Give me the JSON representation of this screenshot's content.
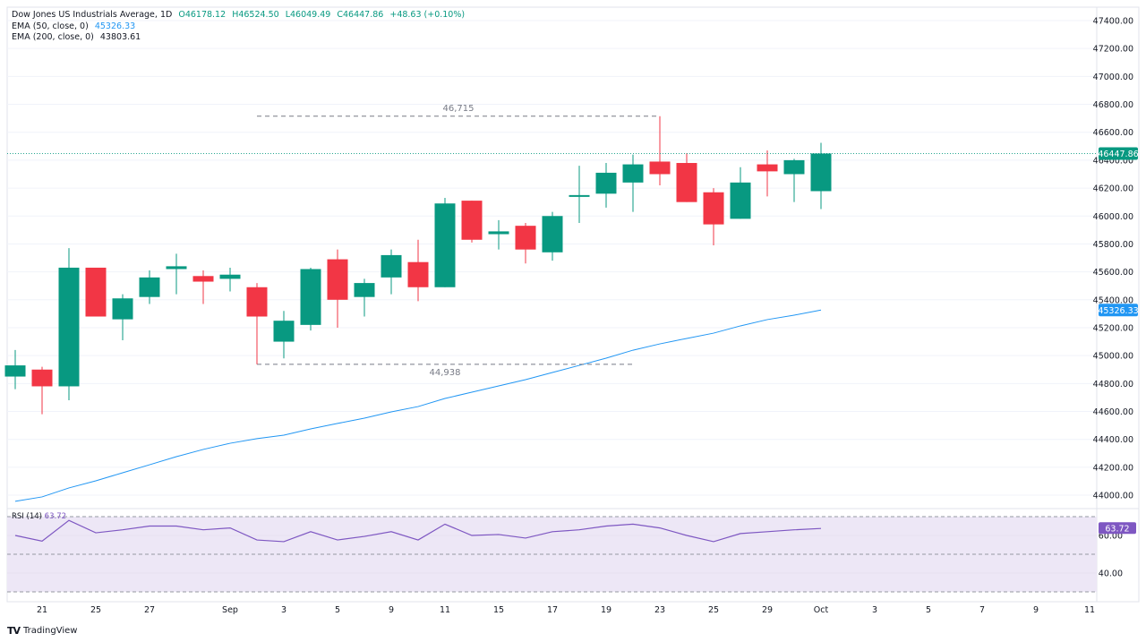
{
  "legend": {
    "title": "Dow Jones US Industrials Average, 1D",
    "open": "O46178.12",
    "high": "H46524.50",
    "low": "L46049.49",
    "close": "C46447.86",
    "change": "+48.63 (+0.10%)",
    "ema50_label": "EMA (50, close, 0)",
    "ema50_value": "45326.33",
    "ema200_label": "EMA (200, close, 0)",
    "ema200_value": "43803.61"
  },
  "branding": {
    "logo_text": "TradingView"
  },
  "chart_data": {
    "type": "candlestick",
    "colors": {
      "up": "#089981",
      "down": "#f23645",
      "ema50": "#2196f3",
      "rsi": "#7e57c2",
      "rsi_band": "#ede7f6"
    },
    "price_axis": {
      "range": [
        43940,
        47460
      ],
      "ticks": [
        47400,
        47200,
        47000,
        46800,
        46600,
        46400,
        46200,
        46000,
        45800,
        45600,
        45400,
        45200,
        45000,
        44800,
        44600,
        44400,
        44200,
        44000
      ]
    },
    "date_ticks": [
      {
        "index": 1,
        "label": "21"
      },
      {
        "index": 3,
        "label": "25"
      },
      {
        "index": 5,
        "label": "27"
      },
      {
        "index": 8,
        "label": "Sep"
      },
      {
        "index": 10,
        "label": "3"
      },
      {
        "index": 12,
        "label": "5"
      },
      {
        "index": 14,
        "label": "9"
      },
      {
        "index": 16,
        "label": "11"
      },
      {
        "index": 18,
        "label": "15"
      },
      {
        "index": 20,
        "label": "17"
      },
      {
        "index": 22,
        "label": "19"
      },
      {
        "index": 24,
        "label": "23"
      },
      {
        "index": 26,
        "label": "25"
      },
      {
        "index": 28,
        "label": "29"
      },
      {
        "index": 30,
        "label": "Oct"
      },
      {
        "index": 32,
        "label": "3"
      },
      {
        "index": 34,
        "label": "5"
      },
      {
        "index": 36,
        "label": "7"
      },
      {
        "index": 38,
        "label": "9"
      },
      {
        "index": 40,
        "label": "11"
      }
    ],
    "candles": [
      [
        44850,
        45040,
        44760,
        44930
      ],
      [
        44900,
        44920,
        44580,
        44780
      ],
      [
        44780,
        45770,
        44680,
        45630
      ],
      [
        45630,
        45630,
        45280,
        45280
      ],
      [
        45260,
        45440,
        45110,
        45410
      ],
      [
        45420,
        45610,
        45370,
        45560
      ],
      [
        45620,
        45730,
        45440,
        45640
      ],
      [
        45570,
        45610,
        45370,
        45530
      ],
      [
        45550,
        45630,
        45460,
        45580
      ],
      [
        45490,
        45520,
        44938,
        45280
      ],
      [
        45100,
        45320,
        44980,
        45250
      ],
      [
        45220,
        45630,
        45180,
        45620
      ],
      [
        45690,
        45760,
        45200,
        45400
      ],
      [
        45420,
        45550,
        45280,
        45520
      ],
      [
        45560,
        45760,
        45440,
        45720
      ],
      [
        45670,
        45830,
        45390,
        45490
      ],
      [
        45490,
        46130,
        45490,
        46090
      ],
      [
        46110,
        46110,
        45810,
        45830
      ],
      [
        45870,
        45970,
        45760,
        45890
      ],
      [
        45930,
        45950,
        45660,
        45760
      ],
      [
        45740,
        46030,
        45680,
        46000
      ],
      [
        46140,
        46360,
        45950,
        46150
      ],
      [
        46160,
        46380,
        46060,
        46310
      ],
      [
        46240,
        46440,
        46030,
        46370
      ],
      [
        46390,
        46715,
        46220,
        46300
      ],
      [
        46380,
        46450,
        46100,
        46100
      ],
      [
        46170,
        46200,
        45790,
        45940
      ],
      [
        45980,
        46350,
        45980,
        46240
      ],
      [
        46370,
        46470,
        46140,
        46320
      ],
      [
        46300,
        46410,
        46100,
        46400
      ],
      [
        46178.12,
        46524.5,
        46049.49,
        46447.86
      ]
    ],
    "candle_format": [
      "open",
      "high",
      "low",
      "close"
    ],
    "ema50": [
      43956,
      43988,
      44052,
      44103,
      44161,
      44218,
      44276,
      44328,
      44372,
      44405,
      44430,
      44475,
      44514,
      44552,
      44597,
      44635,
      44693,
      44738,
      44783,
      44828,
      44879,
      44930,
      44982,
      45039,
      45084,
      45123,
      45161,
      45213,
      45258,
      45290,
      45326.33
    ],
    "last_price": {
      "value": 46447.86,
      "label": "46447.86"
    },
    "ema50_last": {
      "value": 45326.33,
      "label": "45326.33"
    },
    "annotations": [
      {
        "label": "46,715",
        "price": 46715,
        "from_index": 9,
        "to_index": 24
      },
      {
        "label": "44,938",
        "price": 44938,
        "from_index": 9,
        "to_index": 23
      }
    ],
    "rsi": {
      "label": "RSI (14)",
      "value_label": "63.72",
      "range": [
        30,
        70
      ],
      "ticks": [
        {
          "v": 60,
          "label": "60.00"
        },
        {
          "v": 40,
          "label": "40.00"
        }
      ],
      "bands": [
        70,
        50,
        30
      ],
      "values": [
        60,
        57,
        68,
        61.4,
        63,
        65,
        65,
        63,
        64,
        57.6,
        56.7,
        62,
        57.6,
        59.5,
        62,
        57.6,
        66,
        60,
        60.5,
        58.6,
        62,
        63,
        65,
        66,
        64,
        60,
        56.7,
        61,
        62,
        63,
        63.72
      ]
    }
  }
}
